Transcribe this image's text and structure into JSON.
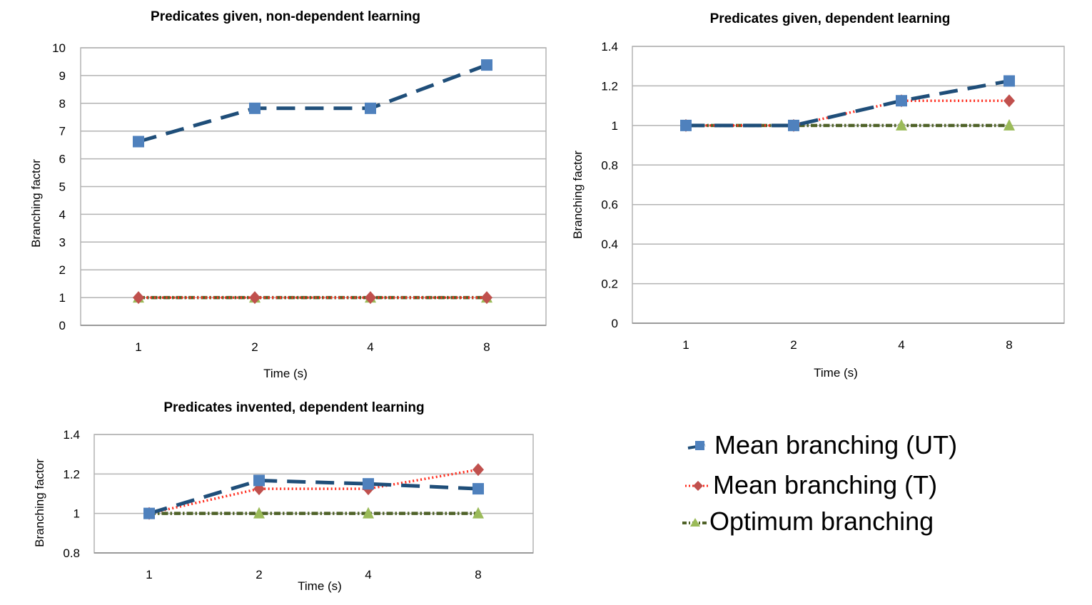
{
  "chart_data": [
    {
      "type": "line",
      "title": "Predicates given, non-dependent learning",
      "xlabel": "Time (s)",
      "ylabel": "Branching factor",
      "categories": [
        "1",
        "2",
        "4",
        "8"
      ],
      "ylim": [
        0,
        10
      ],
      "yticks": [
        "0",
        "1",
        "2",
        "3",
        "4",
        "5",
        "6",
        "7",
        "8",
        "9",
        "10"
      ],
      "grid": true,
      "series": [
        {
          "name": "Mean branching (UT)",
          "values": [
            6.62,
            7.82,
            7.82,
            9.38
          ]
        },
        {
          "name": "Mean branching (T)",
          "values": [
            1.0,
            1.0,
            1.0,
            1.0
          ]
        },
        {
          "name": "Optimum branching",
          "values": [
            1.0,
            1.0,
            1.0,
            1.0
          ]
        }
      ]
    },
    {
      "type": "line",
      "title": "Predicates given, dependent learning",
      "xlabel": "Time (s)",
      "ylabel": "Branching factor",
      "categories": [
        "1",
        "2",
        "4",
        "8"
      ],
      "ylim": [
        0,
        1.4
      ],
      "yticks": [
        "0",
        "0.2",
        "0.4",
        "0.6",
        "0.8",
        "1",
        "1.2",
        "1.4"
      ],
      "grid": true,
      "series": [
        {
          "name": "Mean branching (UT)",
          "values": [
            1.0,
            1.0,
            1.125,
            1.225
          ]
        },
        {
          "name": "Mean branching (T)",
          "values": [
            1.0,
            1.0,
            1.125,
            1.125
          ]
        },
        {
          "name": "Optimum branching",
          "values": [
            1.0,
            1.0,
            1.0,
            1.0
          ]
        }
      ]
    },
    {
      "type": "line",
      "title": "Predicates invented, dependent learning",
      "xlabel": "Time (s)",
      "ylabel": "Branching factor",
      "categories": [
        "1",
        "2",
        "4",
        "8"
      ],
      "ylim": [
        0.8,
        1.4
      ],
      "yticks": [
        "0.8",
        "1",
        "1.2",
        "1.4"
      ],
      "grid": true,
      "series": [
        {
          "name": "Mean branching (UT)",
          "values": [
            1.0,
            1.167,
            1.15,
            1.125
          ]
        },
        {
          "name": "Mean branching (T)",
          "values": [
            1.0,
            1.125,
            1.125,
            1.222
          ]
        },
        {
          "name": "Optimum branching",
          "values": [
            1.0,
            1.0,
            1.0,
            1.0
          ]
        }
      ]
    }
  ],
  "legend": {
    "placement": "bottom-right",
    "items": [
      {
        "label": "Mean branching (UT)",
        "line": "#1f4e79",
        "marker": "#4f81bd",
        "shape": "square"
      },
      {
        "label": "Mean branching (T)",
        "line": "#ff2b1c",
        "marker": "#c0504d",
        "shape": "diamond"
      },
      {
        "label": "Optimum branching",
        "line": "#4f6228",
        "marker": "#9bbb59",
        "shape": "triangle"
      }
    ]
  },
  "colors": {
    "ut_line": "#1f4e79",
    "ut_marker": "#4f81bd",
    "t_line": "#ff2b1c",
    "t_marker": "#c0504d",
    "opt_line": "#4f6228",
    "opt_marker": "#9bbb59",
    "gridline": "#b3b3b3"
  }
}
